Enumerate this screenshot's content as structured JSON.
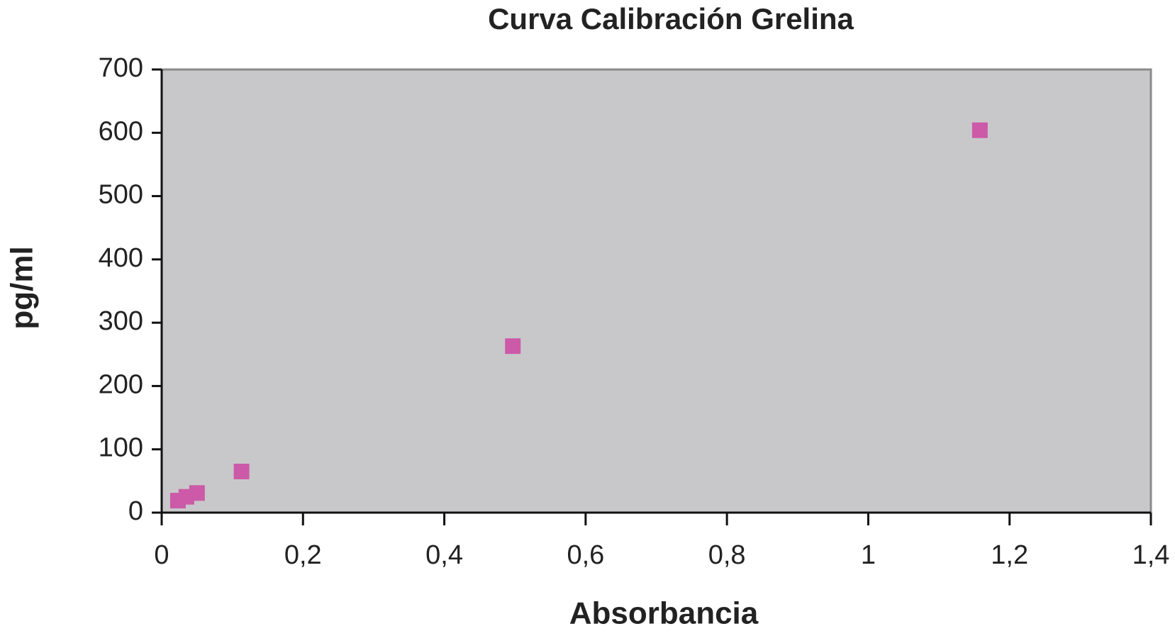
{
  "chart_data": {
    "type": "scatter",
    "title": "Curva Calibración Grelina",
    "x_label": "Absorbancia",
    "y_label": "pg/ml",
    "series": [
      {
        "color": "#cc5aa8",
        "x": [
          0.023,
          0.035,
          0.05,
          0.113,
          0.497,
          1.158
        ],
        "values": [
          19,
          25,
          31,
          65,
          263,
          604
        ]
      }
    ],
    "xlim": [
      0,
      1.4
    ],
    "xticks": [
      0,
      {
        "value": 0.2,
        "label": "0,2"
      },
      {
        "value": 0.4,
        "label": "0,4"
      },
      {
        "value": 0.6,
        "label": "0,6"
      },
      {
        "value": 0.8,
        "label": "0,8"
      },
      1,
      {
        "value": 1.2,
        "label": "1,2"
      },
      {
        "value": 1.4,
        "label": "1,4"
      }
    ],
    "ylim": [
      0,
      700
    ],
    "yticks": [
      0,
      100,
      200,
      300,
      400,
      500,
      600,
      700
    ],
    "grid": false,
    "plot_background": "#c8c8ca"
  }
}
